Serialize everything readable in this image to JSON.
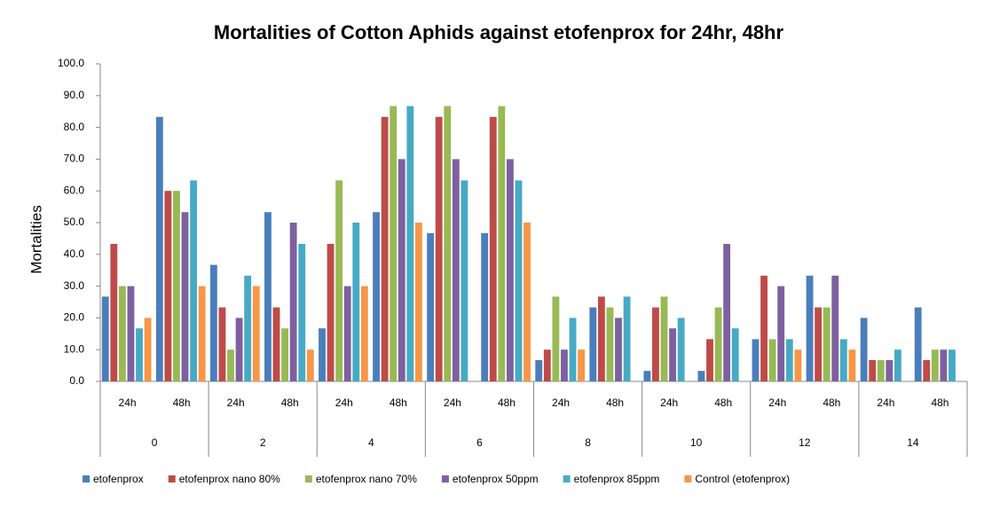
{
  "chart_data": {
    "type": "bar",
    "title": "Mortalities of Cotton Aphids against etofenprox  for 24hr, 48hr",
    "y_label": "Mortalities",
    "groups": [
      "0",
      "2",
      "4",
      "6",
      "8",
      "10",
      "12",
      "14"
    ],
    "categories": [
      "24h",
      "48h",
      "24h",
      "48h",
      "24h",
      "48h",
      "24h",
      "48h",
      "24h",
      "48h",
      "24h",
      "48h",
      "24h",
      "48h",
      "24h",
      "48h"
    ],
    "ylim": [
      0,
      100
    ],
    "yticks": [
      {
        "value": 0,
        "label": "0.0"
      },
      {
        "value": 10,
        "label": "10.0"
      },
      {
        "value": 20,
        "label": "20.0"
      },
      {
        "value": 30,
        "label": "30.0"
      },
      {
        "value": 40,
        "label": "40.0"
      },
      {
        "value": 50,
        "label": "50.0"
      },
      {
        "value": 60,
        "label": "60.0"
      },
      {
        "value": 70,
        "label": "70.0"
      },
      {
        "value": 80,
        "label": "80.0"
      },
      {
        "value": 90,
        "label": "90.0"
      },
      {
        "value": 100,
        "label": "100.0"
      }
    ],
    "grid": false,
    "legend": "bottom",
    "series": [
      {
        "name": "etofenprox",
        "color": "#4a7ebb",
        "values": [
          26.7,
          83.3,
          36.7,
          53.3,
          16.7,
          53.3,
          46.7,
          46.7,
          6.7,
          23.3,
          3.3,
          3.3,
          13.3,
          33.3,
          20,
          23.3
        ]
      },
      {
        "name": "etofenprox nano 80%",
        "color": "#be4b48",
        "values": [
          43.3,
          60,
          23.3,
          23.3,
          43.3,
          83.3,
          83.3,
          83.3,
          10,
          26.7,
          23.3,
          13.3,
          33.3,
          23.3,
          6.7,
          6.7
        ]
      },
      {
        "name": "etofenprox nano 70%",
        "color": "#98b954",
        "values": [
          30,
          60,
          10,
          16.7,
          63.3,
          86.7,
          86.7,
          86.7,
          26.7,
          23.3,
          26.7,
          23.3,
          13.3,
          23.3,
          6.7,
          10
        ]
      },
      {
        "name": "etofenprox 50ppm",
        "color": "#7d60a0",
        "values": [
          30,
          53.3,
          20,
          50,
          30,
          70,
          70,
          70,
          10,
          20,
          16.7,
          43.3,
          30,
          33.3,
          6.7,
          10
        ]
      },
      {
        "name": "etofenprox 85ppm",
        "color": "#46aac5",
        "values": [
          16.7,
          63.3,
          33.3,
          43.3,
          50,
          86.7,
          63.3,
          63.3,
          20,
          26.7,
          20,
          16.7,
          13.3,
          13.3,
          10,
          10
        ]
      },
      {
        "name": "Control (etofenprox)",
        "color": "#f79646",
        "values": [
          20,
          30,
          30,
          10,
          30,
          50,
          0,
          50,
          10,
          0,
          0,
          0,
          10,
          10,
          0,
          0
        ]
      }
    ]
  }
}
